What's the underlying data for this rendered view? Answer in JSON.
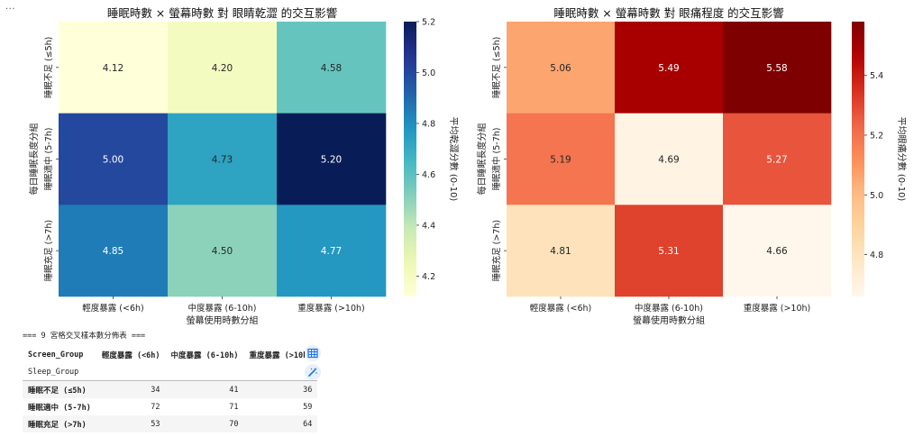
{
  "cell_menu": "...",
  "chart_data": [
    {
      "type": "heatmap",
      "title": "睡眠時數 × 螢幕時數 對 眼睛乾澀 的交互影響",
      "xlabel": "螢幕使用時數分組",
      "ylabel": "每日睡眠長度分組",
      "x_categories": [
        "輕度暴露 (<6h)",
        "中度暴露 (6-10h)",
        "重度暴露 (>10h)"
      ],
      "y_categories": [
        "睡眠不足 (≤5h)",
        "睡眠適中 (5-7h)",
        "睡眠充足 (>7h)"
      ],
      "values": [
        [
          4.12,
          4.2,
          4.58
        ],
        [
          5.0,
          4.73,
          5.2
        ],
        [
          4.85,
          4.5,
          4.77
        ]
      ],
      "value_labels": [
        [
          "4.12",
          "4.20",
          "4.58"
        ],
        [
          "5.00",
          "4.73",
          "5.20"
        ],
        [
          "4.85",
          "4.50",
          "4.77"
        ]
      ],
      "colorbar": {
        "label": "平均乾澀分數 (0-10)",
        "colormap": "YlGnBu",
        "vmin": 4.12,
        "vmax": 5.2,
        "ticks": [
          4.2,
          4.4,
          4.6,
          4.8,
          5.0,
          5.2
        ],
        "tick_labels": [
          "4.2",
          "4.4",
          "4.6",
          "4.8",
          "5.0",
          "5.2"
        ]
      }
    },
    {
      "type": "heatmap",
      "title": "睡眠時數 × 螢幕時數 對 眼痛程度 的交互影響",
      "xlabel": "螢幕使用時數分組",
      "ylabel": "每日睡眠長度分組",
      "x_categories": [
        "輕度暴露 (<6h)",
        "中度暴露 (6-10h)",
        "重度暴露 (>10h)"
      ],
      "y_categories": [
        "睡眠不足 (≤5h)",
        "睡眠適中 (5-7h)",
        "睡眠充足 (>7h)"
      ],
      "values": [
        [
          5.06,
          5.49,
          5.58
        ],
        [
          5.19,
          4.69,
          5.27
        ],
        [
          4.81,
          5.31,
          4.66
        ]
      ],
      "value_labels": [
        [
          "5.06",
          "5.49",
          "5.58"
        ],
        [
          "5.19",
          "4.69",
          "5.27"
        ],
        [
          "4.81",
          "5.31",
          "4.66"
        ]
      ],
      "colorbar": {
        "label": "平均眼痛分數 (0-10)",
        "colormap": "OrRd",
        "vmin": 4.66,
        "vmax": 5.58,
        "ticks": [
          4.8,
          5.0,
          5.2,
          5.4
        ],
        "tick_labels": [
          "4.8",
          "5.0",
          "5.2",
          "5.4"
        ]
      }
    }
  ],
  "crosstab": {
    "heading": "=== 9 宮格交叉樣本數分佈表 ===",
    "columns_name": "Screen_Group",
    "index_name": "Sleep_Group",
    "columns": [
      "輕度暴露 (<6h)",
      "中度暴露 (6-10h)",
      "重度暴露 (>10h)"
    ],
    "rows": [
      {
        "label": "睡眠不足 (≤5h)",
        "values": [
          "34",
          "41",
          "36"
        ]
      },
      {
        "label": "睡眠適中 (5-7h)",
        "values": [
          "72",
          "71",
          "59"
        ]
      },
      {
        "label": "睡眠充足 (>7h)",
        "values": [
          "53",
          "70",
          "64"
        ]
      }
    ]
  },
  "side_buttons": {
    "table_icon": "table-icon",
    "magic_icon": "magic-wand-icon"
  }
}
